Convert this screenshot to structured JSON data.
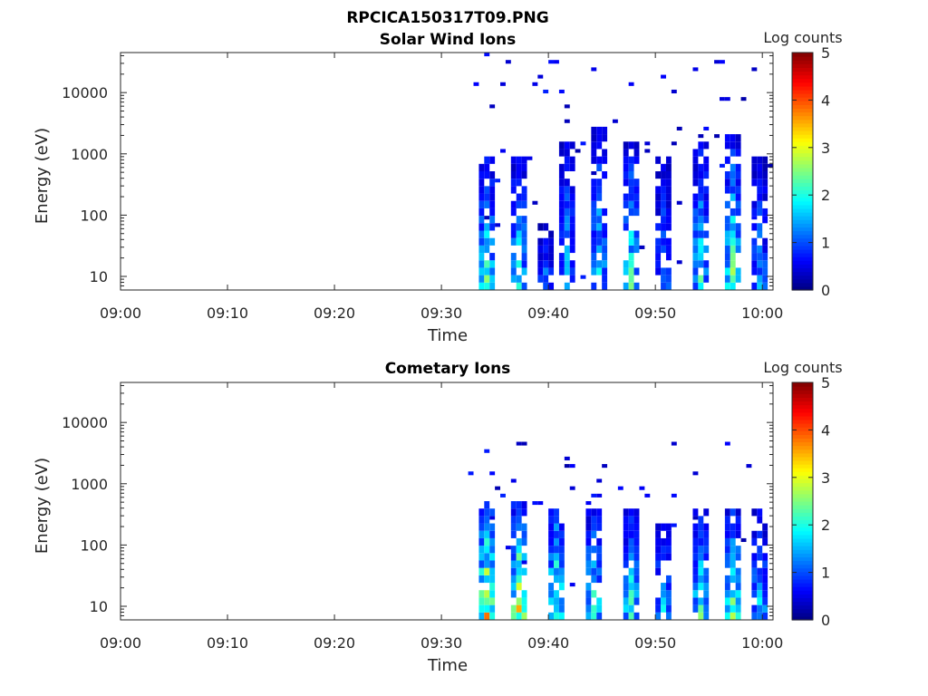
{
  "figure": {
    "title": "RPCICA150317T09.PNG"
  },
  "colormap": [
    "#00007f",
    "#0000ff",
    "#007fff",
    "#00ffff",
    "#7fff7f",
    "#ffff00",
    "#ff7f00",
    "#ff0000",
    "#7f0000"
  ],
  "chart_data": [
    {
      "type": "heatmap",
      "title": "Solar Wind Ions",
      "xlabel": "Time",
      "ylabel": "Energy (eV)",
      "xlim": [
        "09:00",
        "10:01"
      ],
      "x_ticks": [
        "09:00",
        "09:10",
        "09:20",
        "09:30",
        "09:40",
        "09:50",
        "10:00"
      ],
      "ylim": [
        6,
        45000
      ],
      "y_scale": "log",
      "y_ticks": [
        {
          "value": 10,
          "label": "10"
        },
        {
          "value": 100,
          "label": "100"
        },
        {
          "value": 1000,
          "label": "1000"
        },
        {
          "value": 10000,
          "label": "10000"
        }
      ],
      "colorbar": {
        "label": "Log counts",
        "range": [
          0,
          5
        ],
        "ticks": [
          "0",
          "1",
          "2",
          "3",
          "4",
          "5"
        ]
      },
      "data_start": "09:32:30",
      "cell_minutes": 0.5,
      "energy_bins": 32,
      "bursts": [
        {
          "t": 34.0,
          "e": [
            6,
            900
          ],
          "peak": 2.5
        },
        {
          "t": 37.0,
          "e": [
            6,
            900
          ],
          "peak": 2.2
        },
        {
          "t": 39.5,
          "e": [
            6,
            80
          ],
          "peak": 1.4
        },
        {
          "t": 41.5,
          "e": [
            6,
            1500
          ],
          "peak": 1.8
        },
        {
          "t": 44.5,
          "e": [
            6,
            3000
          ],
          "peak": 2.0
        },
        {
          "t": 47.5,
          "e": [
            6,
            1500
          ],
          "peak": 2.3
        },
        {
          "t": 50.5,
          "e": [
            6,
            1000
          ],
          "peak": 1.5
        },
        {
          "t": 54.0,
          "e": [
            6,
            1500
          ],
          "peak": 2.2
        },
        {
          "t": 57.0,
          "e": [
            6,
            2000
          ],
          "peak": 2.6
        },
        {
          "t": 59.5,
          "e": [
            6,
            1000
          ],
          "peak": 1.6
        }
      ]
    },
    {
      "type": "heatmap",
      "title": "Cometary Ions",
      "xlabel": "Time",
      "ylabel": "Energy (eV)",
      "xlim": [
        "09:00",
        "10:01"
      ],
      "x_ticks": [
        "09:00",
        "09:10",
        "09:20",
        "09:30",
        "09:40",
        "09:50",
        "10:00"
      ],
      "ylim": [
        6,
        45000
      ],
      "y_scale": "log",
      "y_ticks": [
        {
          "value": 10,
          "label": "10"
        },
        {
          "value": 100,
          "label": "100"
        },
        {
          "value": 1000,
          "label": "1000"
        },
        {
          "value": 10000,
          "label": "10000"
        }
      ],
      "colorbar": {
        "label": "Log counts",
        "range": [
          0,
          5
        ],
        "ticks": [
          "0",
          "1",
          "2",
          "3",
          "4",
          "5"
        ]
      },
      "data_start": "09:32:30",
      "cell_minutes": 0.5,
      "energy_bins": 32,
      "bursts": [
        {
          "t": 34.0,
          "e": [
            6,
            500
          ],
          "peak": 3.6
        },
        {
          "t": 37.0,
          "e": [
            6,
            500
          ],
          "peak": 3.4
        },
        {
          "t": 40.5,
          "e": [
            6,
            400
          ],
          "peak": 3.0
        },
        {
          "t": 44.0,
          "e": [
            6,
            400
          ],
          "peak": 2.5
        },
        {
          "t": 47.5,
          "e": [
            6,
            350
          ],
          "peak": 2.4
        },
        {
          "t": 50.5,
          "e": [
            6,
            250
          ],
          "peak": 2.0
        },
        {
          "t": 54.0,
          "e": [
            6,
            400
          ],
          "peak": 2.5
        },
        {
          "t": 57.0,
          "e": [
            6,
            400
          ],
          "peak": 2.7
        },
        {
          "t": 59.5,
          "e": [
            6,
            350
          ],
          "peak": 2.0
        }
      ]
    }
  ]
}
